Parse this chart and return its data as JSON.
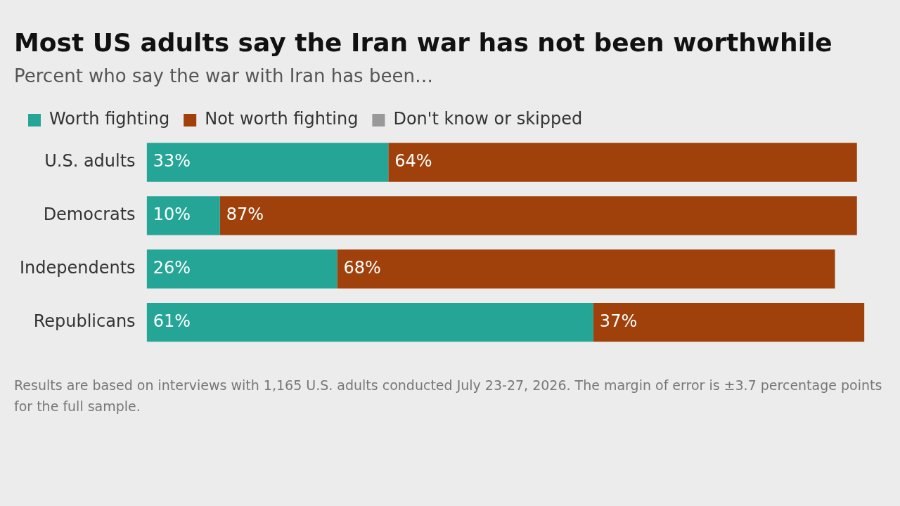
{
  "chart_data": {
    "type": "bar",
    "orientation": "horizontal",
    "stacked": true,
    "title": "Most US adults say the Iran war has not been worthwhile",
    "subtitle": "Percent who say the war with Iran has been…",
    "categories": [
      "U.S. adults",
      "Democrats",
      "Independents",
      "Republicans"
    ],
    "series": [
      {
        "name": "Worth fighting",
        "color": "#24a596",
        "values": [
          33,
          10,
          26,
          61
        ],
        "value_labels": [
          "33%",
          "10%",
          "26%",
          "61%"
        ]
      },
      {
        "name": "Not worth fighting",
        "color": "#a0400a",
        "values": [
          64,
          87,
          68,
          37
        ],
        "value_labels": [
          "64%",
          "87%",
          "68%",
          "37%"
        ]
      },
      {
        "name": "Don't know or skipped",
        "color": "#999999",
        "values": [
          null,
          null,
          null,
          null
        ]
      }
    ],
    "legend": "top left",
    "grid": false,
    "tick_labels": "y",
    "annotations": [
      "Results are based on interviews with 1,165 U.S. adults conducted July 23-27, 2026. The margin of error is ±3.7 percentage points for the full sample."
    ]
  }
}
